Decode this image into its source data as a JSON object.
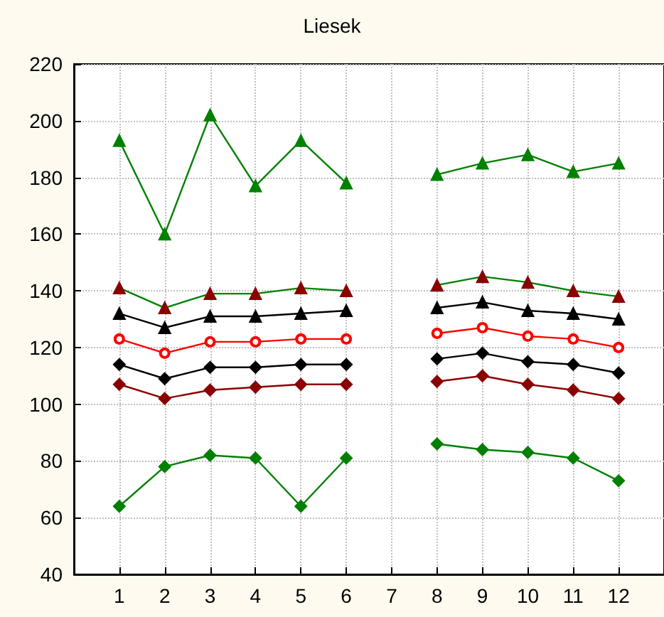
{
  "chart_data": {
    "type": "line",
    "title": "Liesek",
    "x": [
      1,
      2,
      3,
      4,
      5,
      6,
      7,
      8,
      9,
      10,
      11,
      12
    ],
    "xlim": [
      0,
      13
    ],
    "xticks": [
      1,
      2,
      3,
      4,
      5,
      6,
      7,
      8,
      9,
      10,
      11,
      12
    ],
    "ylim": [
      40,
      220
    ],
    "yticks": [
      40,
      60,
      80,
      100,
      120,
      140,
      160,
      180,
      200,
      220
    ],
    "grid": true,
    "series": [
      {
        "color": "#008000",
        "marker": "triangle",
        "values": [
          193,
          160,
          202,
          177,
          193,
          178,
          null,
          181,
          185,
          188,
          182,
          185
        ]
      },
      {
        "color": "#008000",
        "colors": [
          "#8b0000",
          "#8b0000",
          "#8b0000",
          "#8b0000",
          "#8b0000",
          "#8b0000",
          "#8b0000",
          "#8b0000",
          "#8b0000",
          "#8b0000",
          "#8b0000",
          "#8b0000"
        ],
        "marker": "triangle",
        "values": [
          141,
          134,
          139,
          139,
          141,
          140,
          null,
          142,
          145,
          143,
          140,
          138
        ]
      },
      {
        "color": "#000000",
        "marker": "triangle",
        "values": [
          132,
          127,
          131,
          131,
          132,
          133,
          null,
          134,
          136,
          133,
          132,
          130
        ]
      },
      {
        "color": "#ff0000",
        "marker": "circle",
        "values": [
          123,
          118,
          122,
          122,
          123,
          123,
          null,
          125,
          127,
          124,
          123,
          120
        ]
      },
      {
        "color": "#000000",
        "marker": "diamond",
        "values": [
          114,
          109,
          113,
          113,
          114,
          114,
          null,
          116,
          118,
          115,
          114,
          111
        ]
      },
      {
        "color": "#8b0000",
        "marker": "diamond",
        "values": [
          107,
          102,
          105,
          106,
          107,
          107,
          null,
          108,
          110,
          107,
          105,
          102
        ]
      },
      {
        "color": "#008000",
        "marker": "diamond",
        "values": [
          64,
          78,
          82,
          81,
          64,
          81,
          null,
          86,
          84,
          83,
          81,
          73
        ]
      }
    ]
  }
}
